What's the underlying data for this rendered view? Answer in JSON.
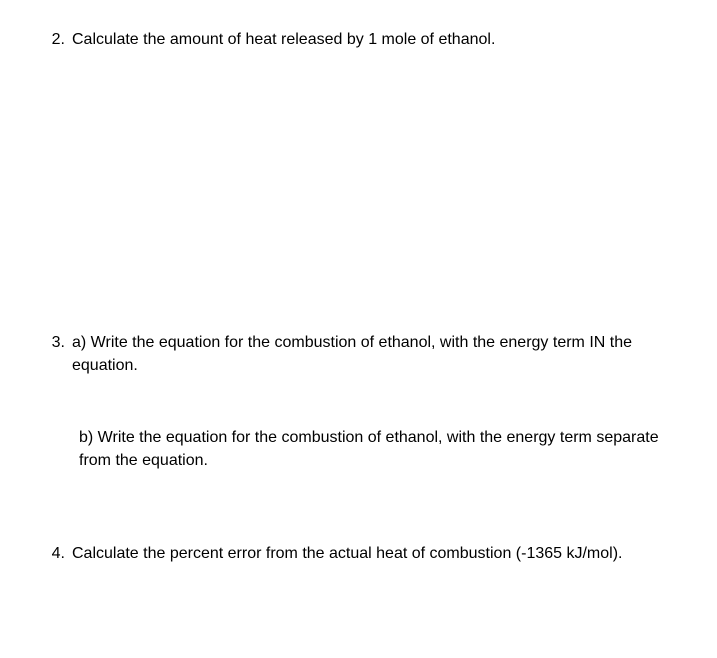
{
  "document": {
    "background_color": "#ffffff",
    "text_color": "#000000",
    "font_family": "Arial, Helvetica, sans-serif",
    "base_font_size": 16
  },
  "questions": {
    "q2": {
      "number": "2.",
      "text": "Calculate the amount of heat released by 1 mole of ethanol."
    },
    "q3": {
      "number": "3.",
      "part_a": "a) Write the equation for the combustion of ethanol, with the energy term IN the equation.",
      "part_b": "b) Write the equation for the combustion of ethanol, with the energy term separate from the equation."
    },
    "q4": {
      "number": "4.",
      "text": "Calculate the percent error from the actual heat of combustion (-1365 kJ/mol)."
    }
  }
}
